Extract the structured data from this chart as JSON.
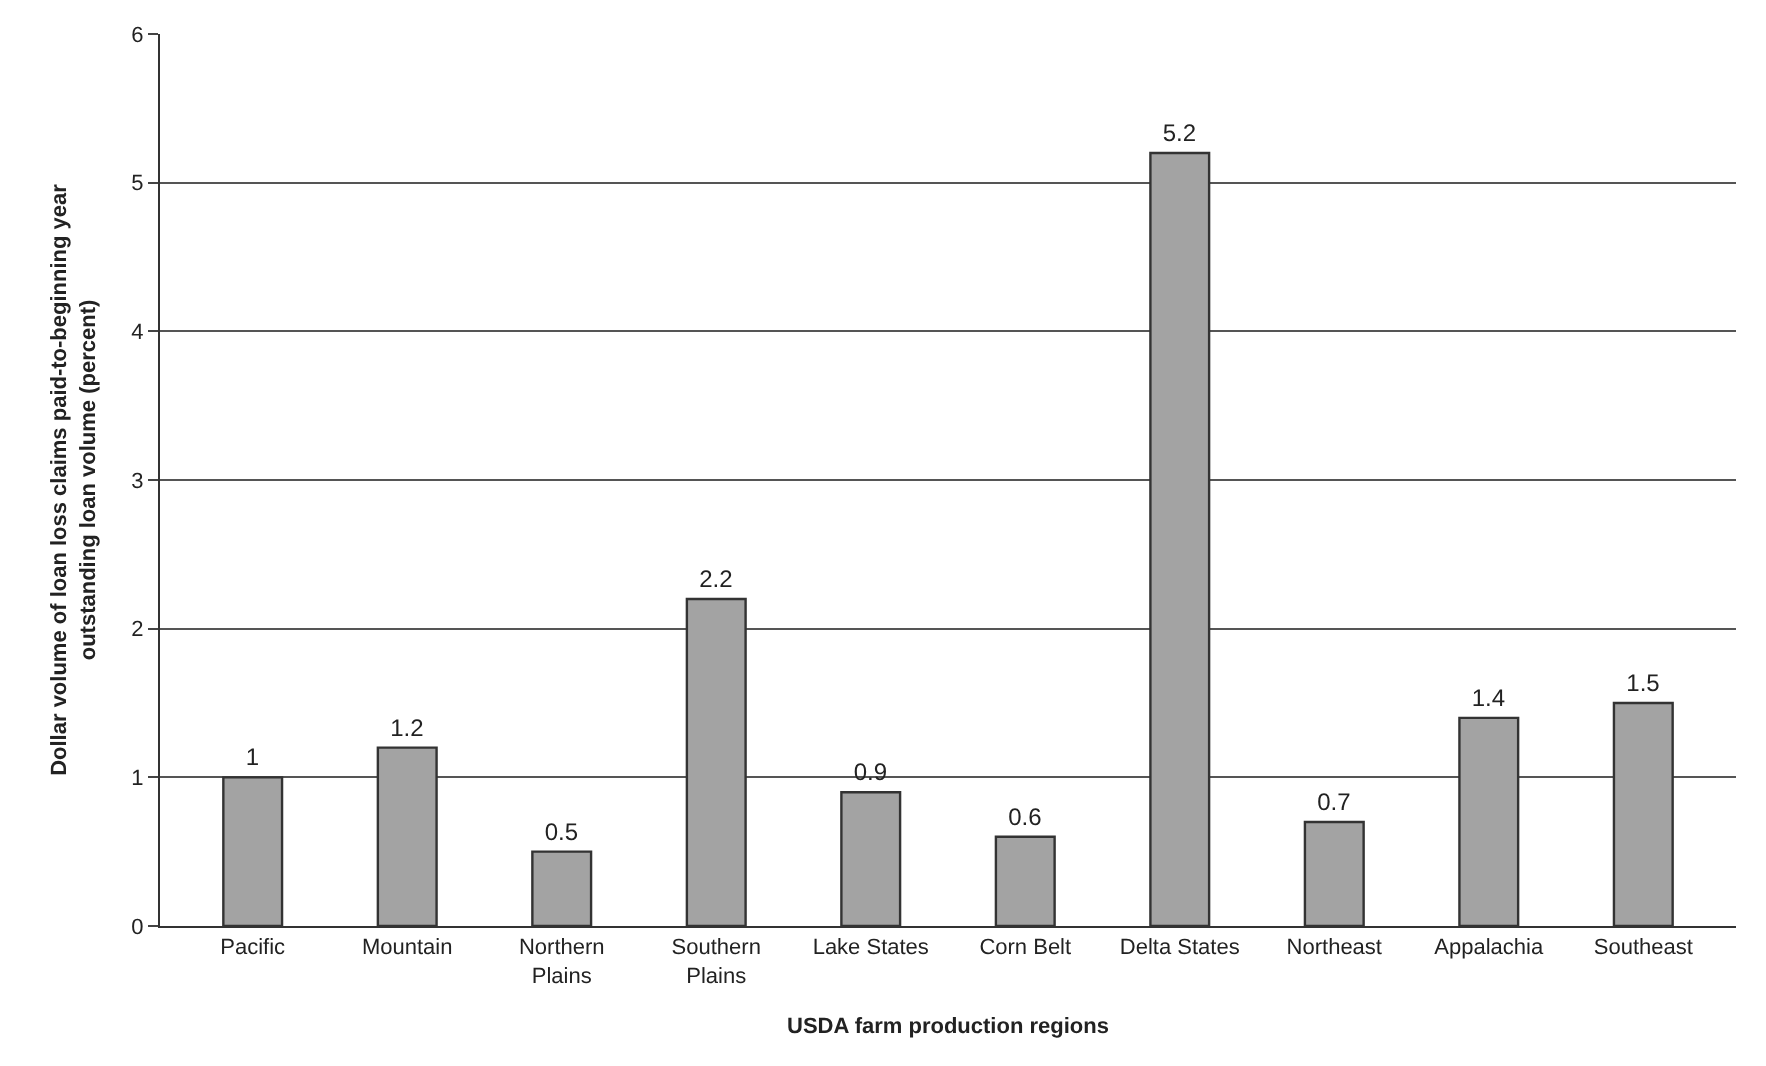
{
  "chart_data": {
    "type": "bar",
    "xlabel": "USDA farm production regions",
    "ylabel": "Dollar volume of loan loss claims paid-to-beginning year\noutstanding loan volume (percent)",
    "categories": [
      "Pacific",
      "Mountain",
      "Northern Plains",
      "Southern Plains",
      "Lake States",
      "Corn Belt",
      "Delta States",
      "Northeast",
      "Appalachia",
      "Southeast"
    ],
    "values": [
      1,
      1.2,
      0.5,
      2.2,
      0.9,
      0.6,
      5.2,
      0.7,
      1.4,
      1.5
    ],
    "color": "#a3a3a3",
    "ylim": [
      0,
      6
    ],
    "yticks": [
      0,
      1,
      2,
      3,
      4,
      5,
      6
    ],
    "grid": "y",
    "data_labels": true,
    "legend": false
  }
}
